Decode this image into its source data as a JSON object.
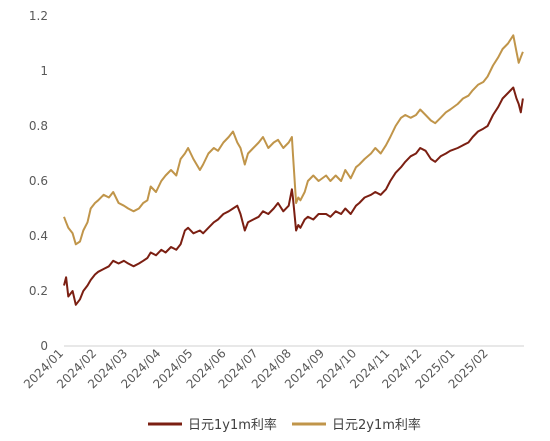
{
  "chart_data": {
    "type": "line",
    "title": "",
    "xlabel": "",
    "ylabel": "",
    "ylim": [
      0,
      1.2
    ],
    "yticks": [
      "0",
      "0.2",
      "0.4",
      "0.6",
      "0.8",
      "1",
      "1.2"
    ],
    "x_categories": [
      "2024/01",
      "2024/02",
      "2024/03",
      "2024/04",
      "2024/05",
      "2024/06",
      "2024/07",
      "2024/08",
      "2024/09",
      "2024/10",
      "2024/11",
      "2024/12",
      "2025/01",
      "2025/02"
    ],
    "grid": false,
    "legend_position": "bottom",
    "series": [
      {
        "name": "日元1y1m利率",
        "color": "#7B1F12",
        "points": [
          [
            "2024/01/01",
            0.22
          ],
          [
            "2024/01/03",
            0.25
          ],
          [
            "2024/01/05",
            0.18
          ],
          [
            "2024/01/09",
            0.2
          ],
          [
            "2024/01/12",
            0.15
          ],
          [
            "2024/01/16",
            0.17
          ],
          [
            "2024/01/19",
            0.2
          ],
          [
            "2024/01/23",
            0.22
          ],
          [
            "2024/01/26",
            0.24
          ],
          [
            "2024/01/30",
            0.26
          ],
          [
            "2024/02/02",
            0.27
          ],
          [
            "2024/02/07",
            0.28
          ],
          [
            "2024/02/12",
            0.29
          ],
          [
            "2024/02/16",
            0.31
          ],
          [
            "2024/02/21",
            0.3
          ],
          [
            "2024/02/26",
            0.31
          ],
          [
            "2024/03/01",
            0.3
          ],
          [
            "2024/03/06",
            0.29
          ],
          [
            "2024/03/11",
            0.3
          ],
          [
            "2024/03/15",
            0.31
          ],
          [
            "2024/03/19",
            0.32
          ],
          [
            "2024/03/22",
            0.34
          ],
          [
            "2024/03/27",
            0.33
          ],
          [
            "2024/04/01",
            0.35
          ],
          [
            "2024/04/05",
            0.34
          ],
          [
            "2024/04/10",
            0.36
          ],
          [
            "2024/04/15",
            0.35
          ],
          [
            "2024/04/19",
            0.37
          ],
          [
            "2024/04/23",
            0.42
          ],
          [
            "2024/04/26",
            0.43
          ],
          [
            "2024/05/01",
            0.41
          ],
          [
            "2024/05/07",
            0.42
          ],
          [
            "2024/05/10",
            0.41
          ],
          [
            "2024/05/15",
            0.43
          ],
          [
            "2024/05/20",
            0.45
          ],
          [
            "2024/05/24",
            0.46
          ],
          [
            "2024/05/29",
            0.48
          ],
          [
            "2024/06/03",
            0.49
          ],
          [
            "2024/06/07",
            0.5
          ],
          [
            "2024/06/11",
            0.51
          ],
          [
            "2024/06/14",
            0.48
          ],
          [
            "2024/06/18",
            0.42
          ],
          [
            "2024/06/21",
            0.45
          ],
          [
            "2024/06/26",
            0.46
          ],
          [
            "2024/07/01",
            0.47
          ],
          [
            "2024/07/05",
            0.49
          ],
          [
            "2024/07/10",
            0.48
          ],
          [
            "2024/07/15",
            0.5
          ],
          [
            "2024/07/19",
            0.52
          ],
          [
            "2024/07/24",
            0.49
          ],
          [
            "2024/07/29",
            0.51
          ],
          [
            "2024/08/01",
            0.57
          ],
          [
            "2024/08/02",
            0.54
          ],
          [
            "2024/08/05",
            0.42
          ],
          [
            "2024/08/07",
            0.44
          ],
          [
            "2024/08/09",
            0.43
          ],
          [
            "2024/08/13",
            0.46
          ],
          [
            "2024/08/16",
            0.47
          ],
          [
            "2024/08/21",
            0.46
          ],
          [
            "2024/08/26",
            0.48
          ],
          [
            "2024/09/02",
            0.48
          ],
          [
            "2024/09/06",
            0.47
          ],
          [
            "2024/09/11",
            0.49
          ],
          [
            "2024/09/16",
            0.48
          ],
          [
            "2024/09/20",
            0.5
          ],
          [
            "2024/09/25",
            0.48
          ],
          [
            "2024/09/30",
            0.51
          ],
          [
            "2024/10/03",
            0.52
          ],
          [
            "2024/10/08",
            0.54
          ],
          [
            "2024/10/14",
            0.55
          ],
          [
            "2024/10/18",
            0.56
          ],
          [
            "2024/10/23",
            0.55
          ],
          [
            "2024/10/28",
            0.57
          ],
          [
            "2024/11/01",
            0.6
          ],
          [
            "2024/11/06",
            0.63
          ],
          [
            "2024/11/11",
            0.65
          ],
          [
            "2024/11/15",
            0.67
          ],
          [
            "2024/11/20",
            0.69
          ],
          [
            "2024/11/25",
            0.7
          ],
          [
            "2024/11/29",
            0.72
          ],
          [
            "2024/12/04",
            0.71
          ],
          [
            "2024/12/09",
            0.68
          ],
          [
            "2024/12/13",
            0.67
          ],
          [
            "2024/12/18",
            0.69
          ],
          [
            "2024/12/23",
            0.7
          ],
          [
            "2024/12/27",
            0.71
          ],
          [
            "2025/01/03",
            0.72
          ],
          [
            "2025/01/08",
            0.73
          ],
          [
            "2025/01/13",
            0.74
          ],
          [
            "2025/01/17",
            0.76
          ],
          [
            "2025/01/22",
            0.78
          ],
          [
            "2025/01/27",
            0.79
          ],
          [
            "2025/01/31",
            0.8
          ],
          [
            "2025/02/05",
            0.84
          ],
          [
            "2025/02/10",
            0.87
          ],
          [
            "2025/02/14",
            0.9
          ],
          [
            "2025/02/19",
            0.92
          ],
          [
            "2025/02/24",
            0.94
          ],
          [
            "2025/02/27",
            0.9
          ],
          [
            "2025/03/01",
            0.88
          ],
          [
            "2025/03/03",
            0.85
          ],
          [
            "2025/03/05",
            0.9
          ]
        ]
      },
      {
        "name": "日元2y1m利率",
        "color": "#C0954A",
        "points": [
          [
            "2024/01/01",
            0.47
          ],
          [
            "2024/01/03",
            0.45
          ],
          [
            "2024/01/05",
            0.43
          ],
          [
            "2024/01/09",
            0.41
          ],
          [
            "2024/01/12",
            0.37
          ],
          [
            "2024/01/16",
            0.38
          ],
          [
            "2024/01/19",
            0.42
          ],
          [
            "2024/01/23",
            0.45
          ],
          [
            "2024/01/26",
            0.5
          ],
          [
            "2024/01/30",
            0.52
          ],
          [
            "2024/02/02",
            0.53
          ],
          [
            "2024/02/07",
            0.55
          ],
          [
            "2024/02/12",
            0.54
          ],
          [
            "2024/02/16",
            0.56
          ],
          [
            "2024/02/21",
            0.52
          ],
          [
            "2024/02/26",
            0.51
          ],
          [
            "2024/03/01",
            0.5
          ],
          [
            "2024/03/06",
            0.49
          ],
          [
            "2024/03/11",
            0.5
          ],
          [
            "2024/03/15",
            0.52
          ],
          [
            "2024/03/19",
            0.53
          ],
          [
            "2024/03/22",
            0.58
          ],
          [
            "2024/03/27",
            0.56
          ],
          [
            "2024/04/01",
            0.6
          ],
          [
            "2024/04/05",
            0.62
          ],
          [
            "2024/04/10",
            0.64
          ],
          [
            "2024/04/15",
            0.62
          ],
          [
            "2024/04/19",
            0.68
          ],
          [
            "2024/04/23",
            0.7
          ],
          [
            "2024/04/26",
            0.72
          ],
          [
            "2024/05/01",
            0.68
          ],
          [
            "2024/05/07",
            0.64
          ],
          [
            "2024/05/10",
            0.66
          ],
          [
            "2024/05/15",
            0.7
          ],
          [
            "2024/05/20",
            0.72
          ],
          [
            "2024/05/24",
            0.71
          ],
          [
            "2024/05/29",
            0.74
          ],
          [
            "2024/06/03",
            0.76
          ],
          [
            "2024/06/07",
            0.78
          ],
          [
            "2024/06/11",
            0.74
          ],
          [
            "2024/06/14",
            0.72
          ],
          [
            "2024/06/18",
            0.66
          ],
          [
            "2024/06/21",
            0.7
          ],
          [
            "2024/06/26",
            0.72
          ],
          [
            "2024/07/01",
            0.74
          ],
          [
            "2024/07/05",
            0.76
          ],
          [
            "2024/07/10",
            0.72
          ],
          [
            "2024/07/15",
            0.74
          ],
          [
            "2024/07/19",
            0.75
          ],
          [
            "2024/07/24",
            0.72
          ],
          [
            "2024/07/29",
            0.74
          ],
          [
            "2024/08/01",
            0.76
          ],
          [
            "2024/08/02",
            0.7
          ],
          [
            "2024/08/05",
            0.52
          ],
          [
            "2024/08/07",
            0.54
          ],
          [
            "2024/08/09",
            0.53
          ],
          [
            "2024/08/13",
            0.56
          ],
          [
            "2024/08/16",
            0.6
          ],
          [
            "2024/08/21",
            0.62
          ],
          [
            "2024/08/26",
            0.6
          ],
          [
            "2024/09/02",
            0.62
          ],
          [
            "2024/09/06",
            0.6
          ],
          [
            "2024/09/11",
            0.62
          ],
          [
            "2024/09/16",
            0.6
          ],
          [
            "2024/09/20",
            0.64
          ],
          [
            "2024/09/25",
            0.61
          ],
          [
            "2024/09/30",
            0.65
          ],
          [
            "2024/10/03",
            0.66
          ],
          [
            "2024/10/08",
            0.68
          ],
          [
            "2024/10/14",
            0.7
          ],
          [
            "2024/10/18",
            0.72
          ],
          [
            "2024/10/23",
            0.7
          ],
          [
            "2024/10/28",
            0.73
          ],
          [
            "2024/11/01",
            0.76
          ],
          [
            "2024/11/06",
            0.8
          ],
          [
            "2024/11/11",
            0.83
          ],
          [
            "2024/11/15",
            0.84
          ],
          [
            "2024/11/20",
            0.83
          ],
          [
            "2024/11/25",
            0.84
          ],
          [
            "2024/11/29",
            0.86
          ],
          [
            "2024/12/04",
            0.84
          ],
          [
            "2024/12/09",
            0.82
          ],
          [
            "2024/12/13",
            0.81
          ],
          [
            "2024/12/18",
            0.83
          ],
          [
            "2024/12/23",
            0.85
          ],
          [
            "2024/12/27",
            0.86
          ],
          [
            "2025/01/03",
            0.88
          ],
          [
            "2025/01/08",
            0.9
          ],
          [
            "2025/01/13",
            0.91
          ],
          [
            "2025/01/17",
            0.93
          ],
          [
            "2025/01/22",
            0.95
          ],
          [
            "2025/01/27",
            0.96
          ],
          [
            "2025/01/31",
            0.98
          ],
          [
            "2025/02/05",
            1.02
          ],
          [
            "2025/02/10",
            1.05
          ],
          [
            "2025/02/14",
            1.08
          ],
          [
            "2025/02/19",
            1.1
          ],
          [
            "2025/02/24",
            1.13
          ],
          [
            "2025/02/27",
            1.07
          ],
          [
            "2025/03/01",
            1.03
          ],
          [
            "2025/03/03",
            1.05
          ],
          [
            "2025/03/05",
            1.07
          ]
        ]
      }
    ]
  }
}
